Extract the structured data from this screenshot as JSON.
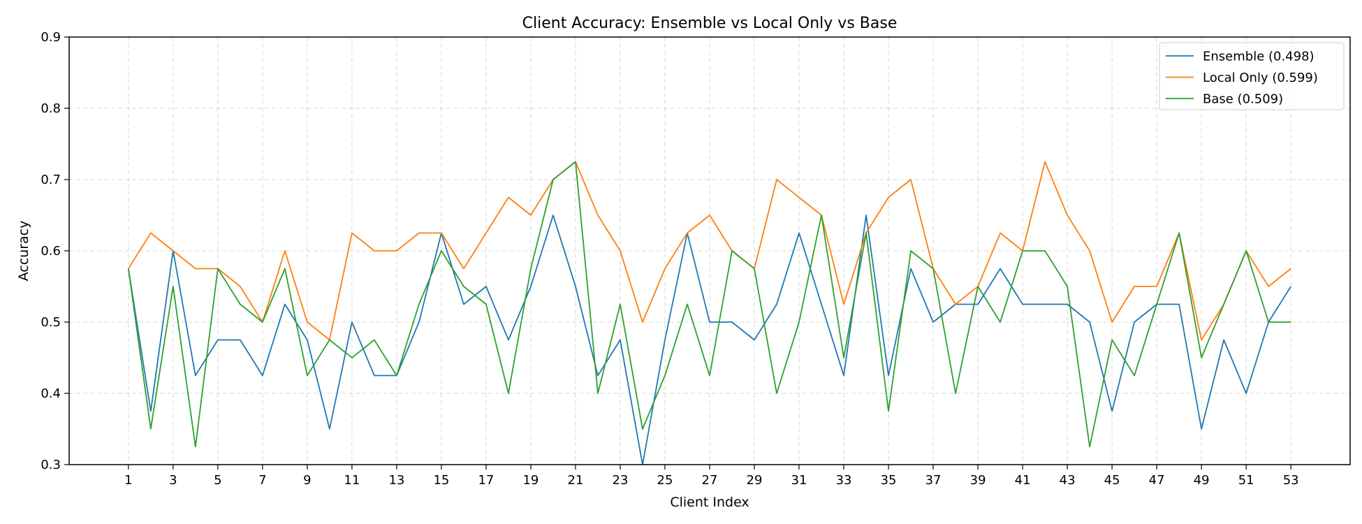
{
  "chart_data": {
    "type": "line",
    "title": "Client Accuracy: Ensemble vs Local Only vs Base",
    "xlabel": "Client Index",
    "ylabel": "Accuracy",
    "x": [
      1,
      2,
      3,
      4,
      5,
      6,
      7,
      8,
      9,
      10,
      11,
      12,
      13,
      14,
      15,
      16,
      17,
      18,
      19,
      20,
      21,
      22,
      23,
      24,
      25,
      26,
      27,
      28,
      29,
      30,
      31,
      32,
      33,
      34,
      35,
      36,
      37,
      38,
      39,
      40,
      41,
      42,
      43,
      44,
      45,
      46,
      47,
      48,
      49,
      50,
      51,
      52,
      53
    ],
    "xticks": [
      "1",
      "3",
      "5",
      "7",
      "9",
      "11",
      "13",
      "15",
      "17",
      "19",
      "21",
      "23",
      "25",
      "27",
      "29",
      "31",
      "33",
      "35",
      "37",
      "39",
      "41",
      "43",
      "45",
      "47",
      "49",
      "51",
      "53"
    ],
    "yticks": [
      "0.3",
      "0.4",
      "0.5",
      "0.6",
      "0.7",
      "0.8",
      "0.9"
    ],
    "xlim": [
      -1.65,
      55.65
    ],
    "ylim": [
      0.3,
      0.9
    ],
    "grid": true,
    "legend_position": "top-right",
    "series": [
      {
        "name": "Ensemble (0.498)",
        "color": "#1f77b4",
        "values": [
          0.575,
          0.375,
          0.6,
          0.425,
          0.475,
          0.475,
          0.425,
          0.525,
          0.475,
          0.35,
          0.5,
          0.425,
          0.425,
          0.5,
          0.625,
          0.525,
          0.55,
          0.475,
          0.55,
          0.65,
          0.55,
          0.425,
          0.475,
          0.3,
          0.475,
          0.625,
          0.5,
          0.5,
          0.475,
          0.525,
          0.625,
          0.525,
          0.425,
          0.65,
          0.425,
          0.575,
          0.5,
          0.525,
          0.525,
          0.575,
          0.525,
          0.525,
          0.525,
          0.5,
          0.375,
          0.5,
          0.525,
          0.525,
          0.35,
          0.475,
          0.4,
          0.5,
          0.55
        ]
      },
      {
        "name": "Local Only (0.599)",
        "color": "#ff7f0e",
        "values": [
          0.575,
          0.625,
          0.6,
          0.575,
          0.575,
          0.55,
          0.5,
          0.6,
          0.5,
          0.475,
          0.625,
          0.6,
          0.6,
          0.625,
          0.625,
          0.575,
          0.625,
          0.675,
          0.65,
          0.7,
          0.725,
          0.65,
          0.6,
          0.5,
          0.575,
          0.625,
          0.65,
          0.6,
          0.575,
          0.7,
          0.675,
          0.65,
          0.525,
          0.625,
          0.675,
          0.7,
          0.575,
          0.525,
          0.55,
          0.625,
          0.6,
          0.725,
          0.65,
          0.6,
          0.5,
          0.55,
          0.55,
          0.625,
          0.475,
          0.525,
          0.6,
          0.55,
          0.575
        ]
      },
      {
        "name": "Base (0.509)",
        "color": "#2ca02c",
        "values": [
          0.575,
          0.35,
          0.55,
          0.325,
          0.575,
          0.525,
          0.5,
          0.575,
          0.425,
          0.475,
          0.45,
          0.475,
          0.425,
          0.525,
          0.6,
          0.55,
          0.525,
          0.4,
          0.575,
          0.7,
          0.725,
          0.4,
          0.525,
          0.35,
          0.425,
          0.525,
          0.425,
          0.6,
          0.575,
          0.4,
          0.5,
          0.65,
          0.45,
          0.625,
          0.375,
          0.6,
          0.575,
          0.4,
          0.55,
          0.5,
          0.6,
          0.6,
          0.55,
          0.325,
          0.475,
          0.425,
          0.525,
          0.625,
          0.45,
          0.525,
          0.6,
          0.5,
          0.5
        ]
      }
    ]
  }
}
